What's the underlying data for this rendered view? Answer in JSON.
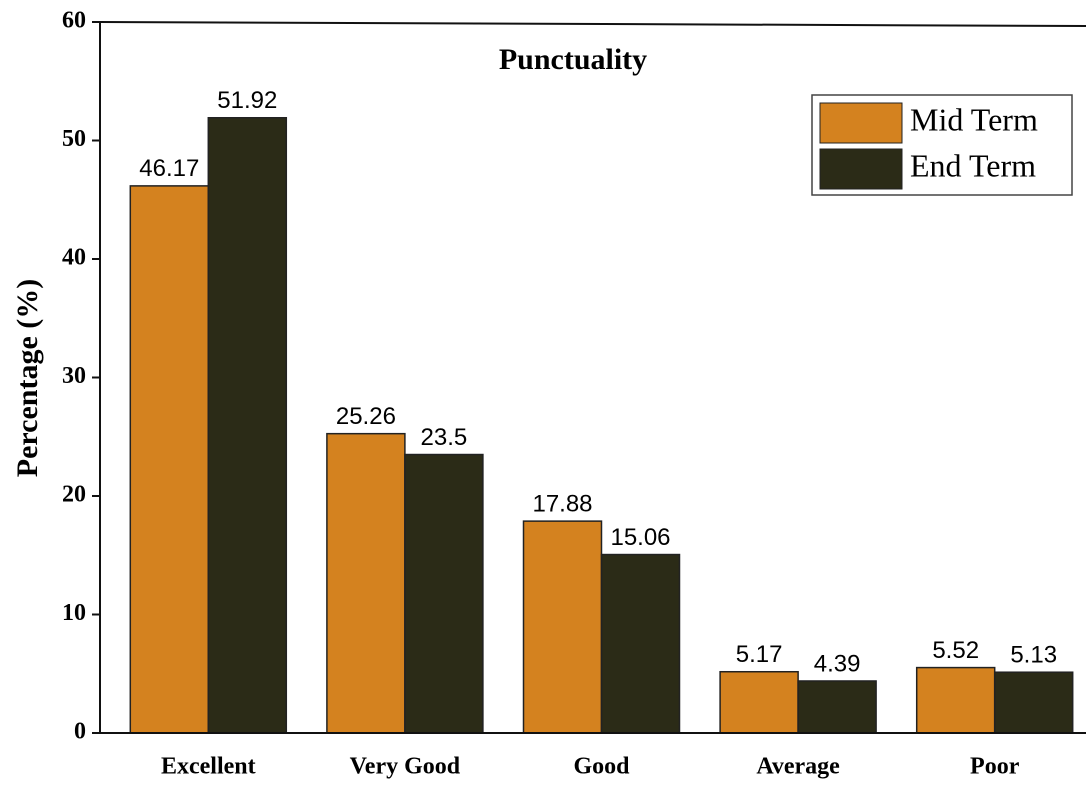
{
  "chart_data": {
    "type": "bar",
    "title": "Punctuality",
    "ylabel": "Percentage (%)",
    "categories": [
      "Excellent",
      "Very Good",
      "Good",
      "Average",
      "Poor"
    ],
    "series": [
      {
        "name": "Mid Term",
        "color": "#d4821f",
        "values": [
          46.17,
          25.26,
          17.88,
          5.17,
          5.52
        ]
      },
      {
        "name": "End Term",
        "color": "#2b2b17",
        "values": [
          51.92,
          23.5,
          15.06,
          4.39,
          5.13
        ]
      }
    ],
    "ylim": [
      0,
      60
    ],
    "yticks": [
      0,
      10,
      20,
      30,
      40,
      50,
      60
    ],
    "legend": "upper right"
  }
}
